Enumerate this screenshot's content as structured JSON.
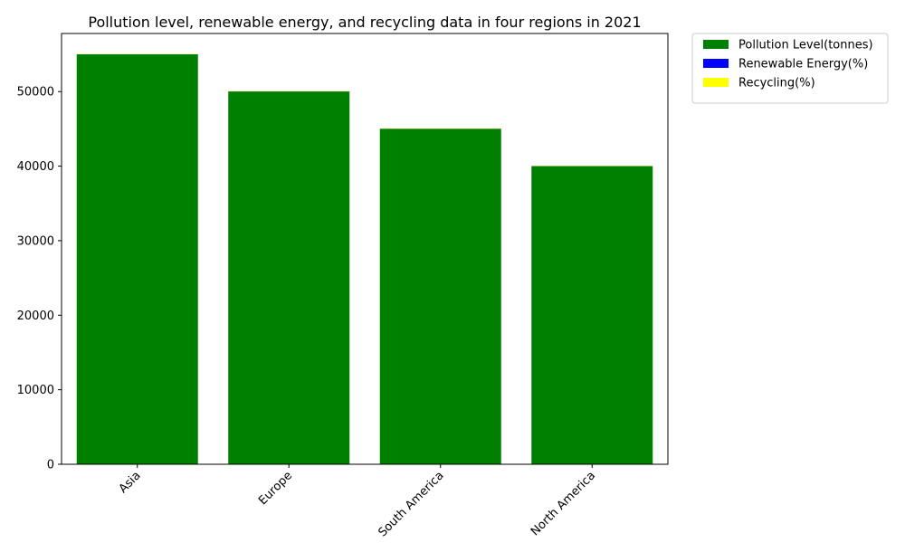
{
  "chart_data": {
    "type": "bar",
    "stacked": true,
    "title": "Pollution level, renewable energy, and recycling data in four regions in 2021",
    "xlabel": "",
    "ylabel": "",
    "categories": [
      "Asia",
      "Europe",
      "South America",
      "North America"
    ],
    "series": [
      {
        "name": "Pollution Level(tonnes)",
        "color": "#008000",
        "values": [
          55000,
          50000,
          45000,
          40000
        ]
      },
      {
        "name": "Renewable Energy(%)",
        "color": "#0000ff",
        "values": [
          20,
          30,
          25,
          10
        ]
      },
      {
        "name": "Recycling(%)",
        "color": "#ffff00",
        "values": [
          40,
          60,
          50,
          30
        ]
      }
    ],
    "ylim": [
      0,
      57800
    ],
    "yticks": [
      0,
      10000,
      20000,
      30000,
      40000,
      50000
    ],
    "grid": false,
    "legend_position": "outside top-right",
    "xtick_rotation": 45
  }
}
